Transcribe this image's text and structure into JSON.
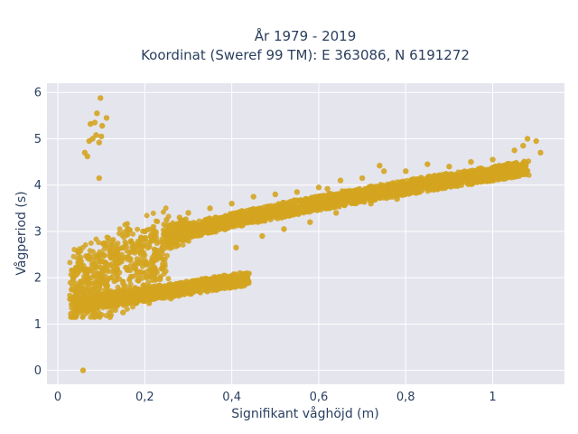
{
  "chart_data": {
    "type": "scatter",
    "title_lines": [
      "År 1979 - 2019",
      "Koordinat (Sweref 99 TM): E 363086, N 6191272"
    ],
    "xlabel": "Signifikant våghöjd (m)",
    "ylabel": "Vågperiod (s)",
    "xlim": [
      -0.025,
      1.165
    ],
    "ylim": [
      -0.3,
      6.2
    ],
    "x_ticks": [
      0,
      0.2,
      0.4,
      0.6,
      0.8,
      1
    ],
    "x_tick_labels": [
      "0",
      "0,2",
      "0,4",
      "0,6",
      "0,8",
      "1"
    ],
    "y_ticks": [
      0,
      1,
      2,
      3,
      4,
      5,
      6
    ],
    "y_tick_labels": [
      "0",
      "1",
      "2",
      "3",
      "4",
      "5",
      "6"
    ],
    "grid": true,
    "legend": "none",
    "colors": {
      "marker": "#d4a420",
      "plot_bg": "#e5e5ee",
      "grid": "#ffffff",
      "text": "#2a3f5f"
    },
    "series": [
      {
        "points": [
          [
            0.058,
            0.0
          ],
          [
            0.095,
            4.15
          ],
          [
            0.062,
            4.7
          ],
          [
            0.068,
            4.62
          ],
          [
            0.072,
            4.95
          ],
          [
            0.08,
            5.0
          ],
          [
            0.088,
            5.08
          ],
          [
            0.095,
            4.92
          ],
          [
            0.1,
            5.05
          ],
          [
            0.075,
            5.32
          ],
          [
            0.085,
            5.35
          ],
          [
            0.102,
            5.28
          ],
          [
            0.112,
            5.45
          ],
          [
            0.09,
            5.55
          ],
          [
            0.098,
            5.88
          ],
          [
            0.03,
            1.22
          ],
          [
            0.04,
            1.2
          ],
          [
            0.035,
            1.5
          ],
          [
            0.05,
            1.55
          ],
          [
            0.06,
            1.65
          ],
          [
            0.08,
            1.75
          ],
          [
            0.1,
            2.0
          ],
          [
            0.11,
            2.3
          ],
          [
            0.1,
            1.2
          ],
          [
            0.12,
            1.15
          ],
          [
            0.13,
            2.5
          ],
          [
            0.15,
            2.65
          ],
          [
            0.15,
            1.25
          ],
          [
            0.17,
            2.75
          ],
          [
            0.18,
            1.45
          ],
          [
            0.2,
            3.0
          ],
          [
            0.22,
            3.1
          ],
          [
            0.21,
            1.45
          ],
          [
            0.25,
            3.25
          ],
          [
            0.26,
            1.55
          ],
          [
            0.28,
            3.3
          ],
          [
            0.3,
            3.4
          ],
          [
            0.3,
            1.9
          ],
          [
            0.32,
            3.1
          ],
          [
            0.35,
            3.5
          ],
          [
            0.36,
            1.95
          ],
          [
            0.4,
            3.6
          ],
          [
            0.41,
            2.65
          ],
          [
            0.45,
            3.75
          ],
          [
            0.47,
            2.9
          ],
          [
            0.5,
            3.8
          ],
          [
            0.52,
            3.05
          ],
          [
            0.55,
            3.85
          ],
          [
            0.58,
            3.2
          ],
          [
            0.6,
            3.95
          ],
          [
            0.64,
            3.4
          ],
          [
            0.65,
            4.1
          ],
          [
            0.7,
            4.15
          ],
          [
            0.72,
            3.6
          ],
          [
            0.75,
            4.3
          ],
          [
            0.78,
            3.7
          ],
          [
            0.8,
            4.3
          ],
          [
            0.83,
            3.85
          ],
          [
            0.85,
            4.45
          ],
          [
            0.88,
            3.95
          ],
          [
            0.9,
            4.4
          ],
          [
            0.92,
            4.05
          ],
          [
            0.95,
            4.5
          ],
          [
            0.98,
            4.2
          ],
          [
            1.0,
            4.55
          ],
          [
            1.02,
            4.4
          ],
          [
            1.05,
            4.75
          ],
          [
            1.07,
            4.85
          ],
          [
            1.08,
            5.0
          ],
          [
            1.1,
            4.95
          ],
          [
            1.11,
            4.7
          ],
          [
            0.74,
            4.42
          ],
          [
            0.62,
            3.92
          ],
          [
            0.57,
            3.55
          ],
          [
            0.44,
            3.28
          ]
        ]
      }
    ]
  }
}
